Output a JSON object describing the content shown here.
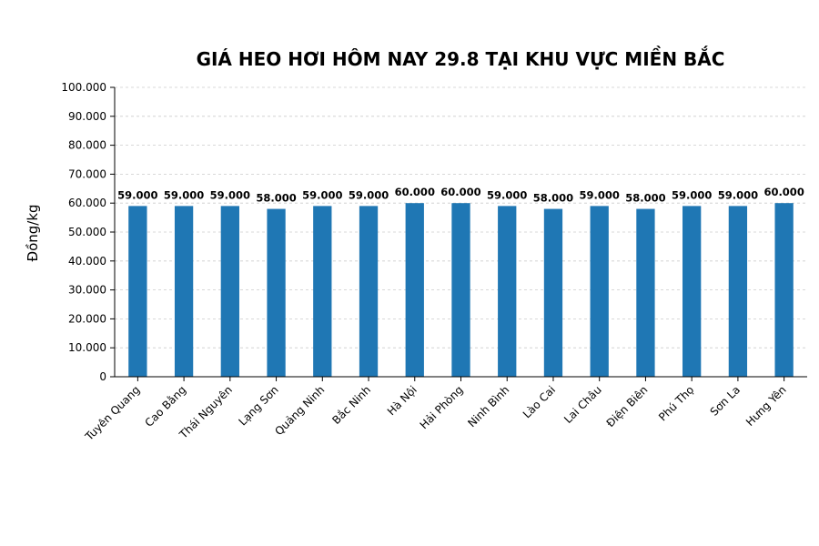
{
  "chart_data": {
    "type": "bar",
    "title": "GIÁ HEO HƠI HÔM NAY 29.8 TẠI KHU VỰC MIỀN BẮC",
    "xlabel": "",
    "ylabel": "Đồng/kg",
    "ylim": [
      0,
      100000
    ],
    "grid": true,
    "categories": [
      "Tuyên Quang",
      "Cao Bằng",
      "Thái Nguyên",
      "Lạng Sơn",
      "Quảng Ninh",
      "Bắc Ninh",
      "Hà Nội",
      "Hải Phòng",
      "Ninh Bình",
      "Lào Cai",
      "Lai Châu",
      "Điện Biên",
      "Phú Thọ",
      "Sơn La",
      "Hưng Yên"
    ],
    "values": [
      59000,
      59000,
      59000,
      58000,
      59000,
      59000,
      60000,
      60000,
      59000,
      58000,
      59000,
      58000,
      59000,
      59000,
      60000
    ],
    "value_labels": [
      "59.000",
      "59.000",
      "59.000",
      "58.000",
      "59.000",
      "59.000",
      "60.000",
      "60.000",
      "59.000",
      "58.000",
      "59.000",
      "58.000",
      "59.000",
      "59.000",
      "60.000"
    ],
    "yticks": [
      0,
      10000,
      20000,
      30000,
      40000,
      50000,
      60000,
      70000,
      80000,
      90000,
      100000
    ],
    "ytick_labels": [
      "0",
      "10.000",
      "20.000",
      "30.000",
      "40.000",
      "50.000",
      "60.000",
      "70.000",
      "80.000",
      "90.000",
      "100.000"
    ],
    "bar_color": "#1f77b4"
  }
}
